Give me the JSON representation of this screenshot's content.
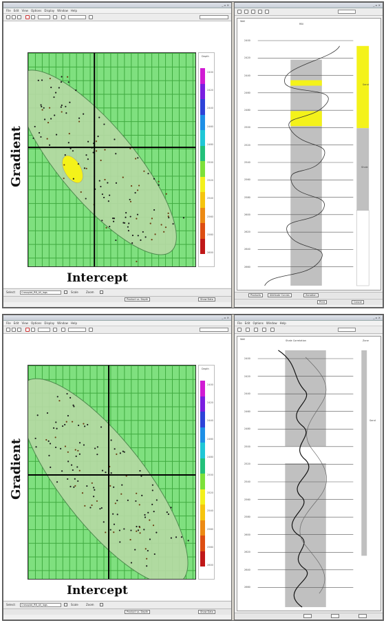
{
  "top": {
    "left_window": {
      "title": "",
      "menu": [
        "File",
        "Edit",
        "View",
        "Options",
        "Display",
        "Window",
        "Help"
      ],
      "y_axis_label": "Gradient",
      "x_axis_label": "Intercept",
      "colorbar_title": "Depth",
      "colorbar_values": [
        "2400",
        "2420",
        "2440",
        "2460",
        "2480",
        "2500",
        "2520",
        "2540",
        "2560",
        "2580",
        "2600"
      ],
      "status": {
        "select_label": "Select:",
        "select_value": "Crossplot_RB_All_logs",
        "scale_label": "Scale",
        "zoom_label": "Zoom"
      },
      "buttons": {
        "product": "Product vs. Depth",
        "show_data": "Show Data"
      }
    },
    "right_window": {
      "title": "",
      "track_header": "Well",
      "track_title": "RBI",
      "zone_labels": [
        "Sand",
        "Shale"
      ],
      "depth_labels": [
        "2400",
        "2420",
        "2440",
        "2460",
        "2480",
        "2500",
        "2520",
        "2540",
        "2560",
        "2580",
        "2600",
        "2620",
        "2640",
        "2660"
      ],
      "bottom_tabs": [
        "Products",
        "Attribute Curves",
        "Zonation"
      ],
      "buttons": [
        "Print",
        "Cancel"
      ]
    }
  },
  "bottom": {
    "left_window": {
      "title": "",
      "menu": [
        "File",
        "Edit",
        "View",
        "Options",
        "Display",
        "Window",
        "Help"
      ],
      "y_axis_label": "Gradient",
      "x_axis_label": "Intercept",
      "colorbar_title": "Depth",
      "colorbar_values": [
        "2400",
        "2420",
        "2440",
        "2460",
        "2480",
        "2500",
        "2520",
        "2540",
        "2560",
        "2580",
        "2600"
      ],
      "status": {
        "select_label": "Select:",
        "select_value": "Crossplot_RB_All_logs",
        "scale_label": "Scale",
        "zoom_label": "Zoom"
      },
      "buttons": {
        "product": "Product vs. Depth",
        "show_data": "Show Data"
      }
    },
    "right_window": {
      "title": "",
      "menu": [
        "File",
        "Edit",
        "Options",
        "Window",
        "Help"
      ],
      "track_header": "Well",
      "track_title": "Shale Correlation",
      "zone_labels": [
        "Zone",
        "Sand"
      ],
      "depth_labels": [
        "2400",
        "2420",
        "2440",
        "2460",
        "2480",
        "2500",
        "2520",
        "2540",
        "2560",
        "2580",
        "2600",
        "2620",
        "2640",
        "2660"
      ]
    }
  },
  "colors": {
    "plot_bg": "#7fe07f",
    "grid": "#3faa3f",
    "ellipse": "#b6d9a4",
    "highlight": "#f4f21a",
    "shale": "#c0c0c0"
  }
}
